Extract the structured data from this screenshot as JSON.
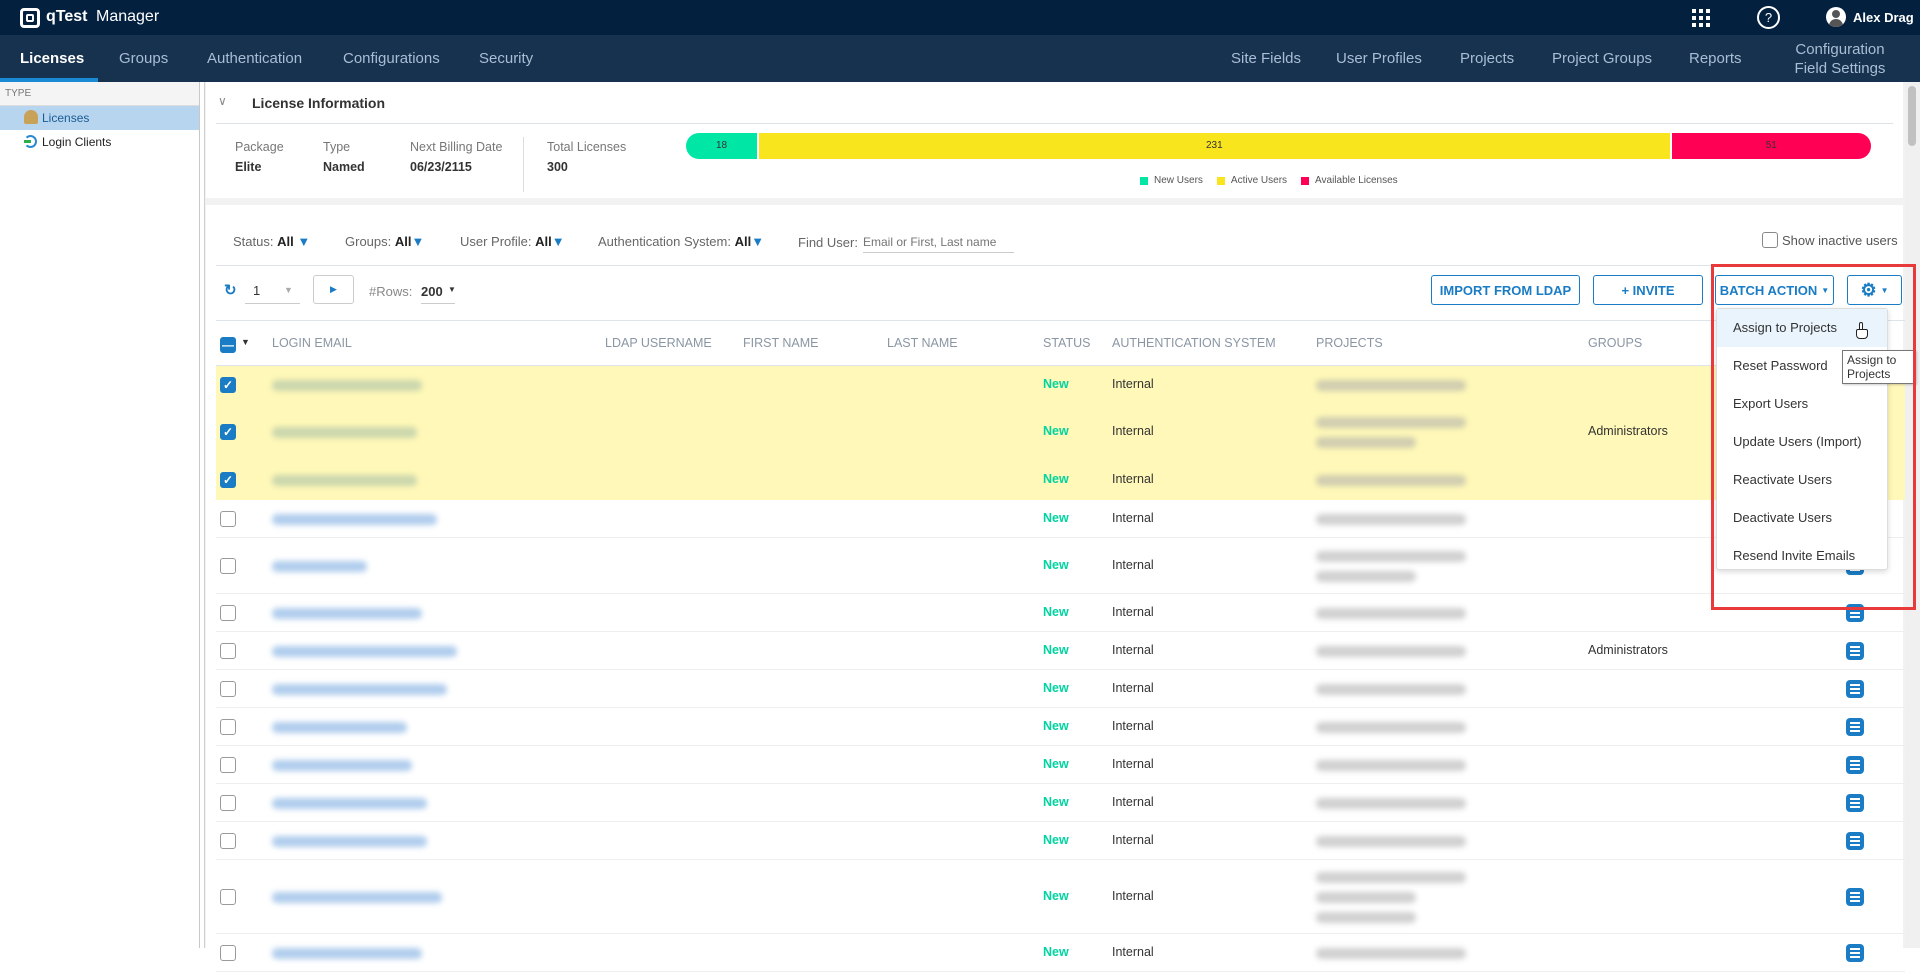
{
  "app": {
    "logo_text": "qTest",
    "logo_suffix": "Manager",
    "user_name": "Alex Drag",
    "icons": [
      "apps-grid-icon",
      "help-icon",
      "avatar-icon"
    ]
  },
  "nav": {
    "left": [
      "Licenses",
      "Groups",
      "Authentication",
      "Configurations",
      "Security"
    ],
    "right": [
      "Site Fields",
      "User Profiles",
      "Projects",
      "Project Groups",
      "Reports"
    ],
    "config_line1": "Configuration",
    "config_line2": "Field Settings",
    "active": "Licenses"
  },
  "sidebar": {
    "header": "TYPE",
    "items": [
      {
        "label": "Licenses",
        "icon": "users-icon",
        "selected": true
      },
      {
        "label": "Login Clients",
        "icon": "login-icon",
        "selected": false
      }
    ]
  },
  "license": {
    "title": "License Information",
    "fields": [
      {
        "label": "Package",
        "value": "Elite"
      },
      {
        "label": "Type",
        "value": "Named"
      },
      {
        "label": "Next Billing Date",
        "value": "06/23/2115"
      },
      {
        "label": "Total Licenses",
        "value": "300"
      }
    ],
    "bar": [
      {
        "name": "New Users",
        "value": 18,
        "color": "#00e6a5"
      },
      {
        "name": "Active Users",
        "value": 231,
        "color": "#f8e51e"
      },
      {
        "name": "Available Licenses",
        "value": 51,
        "color": "#ff0054"
      }
    ],
    "total": 300
  },
  "filters": {
    "status_label": "Status:",
    "status_value": "All",
    "groups_label": "Groups:",
    "groups_value": "All",
    "profile_label": "User Profile:",
    "profile_value": "All",
    "auth_label": "Authentication System:",
    "auth_value": "All",
    "find_label": "Find User:",
    "find_placeholder": "Email or First, Last name",
    "show_inactive": "Show inactive users",
    "show_inactive_checked": false
  },
  "toolbar": {
    "page": "1",
    "rows_label": "#Rows:",
    "rows_value": "200",
    "import_ldap": "IMPORT FROM LDAP",
    "invite": "+ INVITE",
    "batch_action": "BATCH ACTION"
  },
  "table": {
    "headers": [
      "LOGIN EMAIL",
      "LDAP USERNAME",
      "FIRST NAME",
      "LAST NAME",
      "STATUS",
      "AUTHENTICATION SYSTEM",
      "PROJECTS",
      "GROUPS"
    ],
    "rows": [
      {
        "checked": true,
        "status": "New",
        "auth": "Internal",
        "groups": "",
        "project_lines": 1
      },
      {
        "checked": true,
        "status": "New",
        "auth": "Internal",
        "groups": "Administrators",
        "project_lines": 2
      },
      {
        "checked": true,
        "status": "New",
        "auth": "Internal",
        "groups": "",
        "project_lines": 1
      },
      {
        "checked": false,
        "status": "New",
        "auth": "Internal",
        "groups": "",
        "project_lines": 1
      },
      {
        "checked": false,
        "status": "New",
        "auth": "Internal",
        "groups": "",
        "project_lines": 2
      },
      {
        "checked": false,
        "status": "New",
        "auth": "Internal",
        "groups": "",
        "project_lines": 1
      },
      {
        "checked": false,
        "status": "New",
        "auth": "Internal",
        "groups": "Administrators",
        "project_lines": 1
      },
      {
        "checked": false,
        "status": "New",
        "auth": "Internal",
        "groups": "",
        "project_lines": 1
      },
      {
        "checked": false,
        "status": "New",
        "auth": "Internal",
        "groups": "",
        "project_lines": 1
      },
      {
        "checked": false,
        "status": "New",
        "auth": "Internal",
        "groups": "",
        "project_lines": 1
      },
      {
        "checked": false,
        "status": "New",
        "auth": "Internal",
        "groups": "",
        "project_lines": 1
      },
      {
        "checked": false,
        "status": "New",
        "auth": "Internal",
        "groups": "",
        "project_lines": 1
      },
      {
        "checked": false,
        "status": "New",
        "auth": "Internal",
        "groups": "",
        "project_lines": 3
      },
      {
        "checked": false,
        "status": "New",
        "auth": "Internal",
        "groups": "",
        "project_lines": 1
      }
    ]
  },
  "batch_menu": {
    "items": [
      "Assign to Projects",
      "Reset Password",
      "Export Users",
      "Update Users (Import)",
      "Reactivate Users",
      "Deactivate Users",
      "Resend Invite Emails"
    ],
    "hovered": "Assign to Projects",
    "tooltip": "Assign to Projects"
  },
  "colors": {
    "topbar": "#03203f",
    "nav": "#17324f",
    "accent": "#1a7cc4",
    "status_new": "#00d4a0",
    "selected_row": "#fff8b8",
    "highlight_box": "#e83a3a"
  }
}
